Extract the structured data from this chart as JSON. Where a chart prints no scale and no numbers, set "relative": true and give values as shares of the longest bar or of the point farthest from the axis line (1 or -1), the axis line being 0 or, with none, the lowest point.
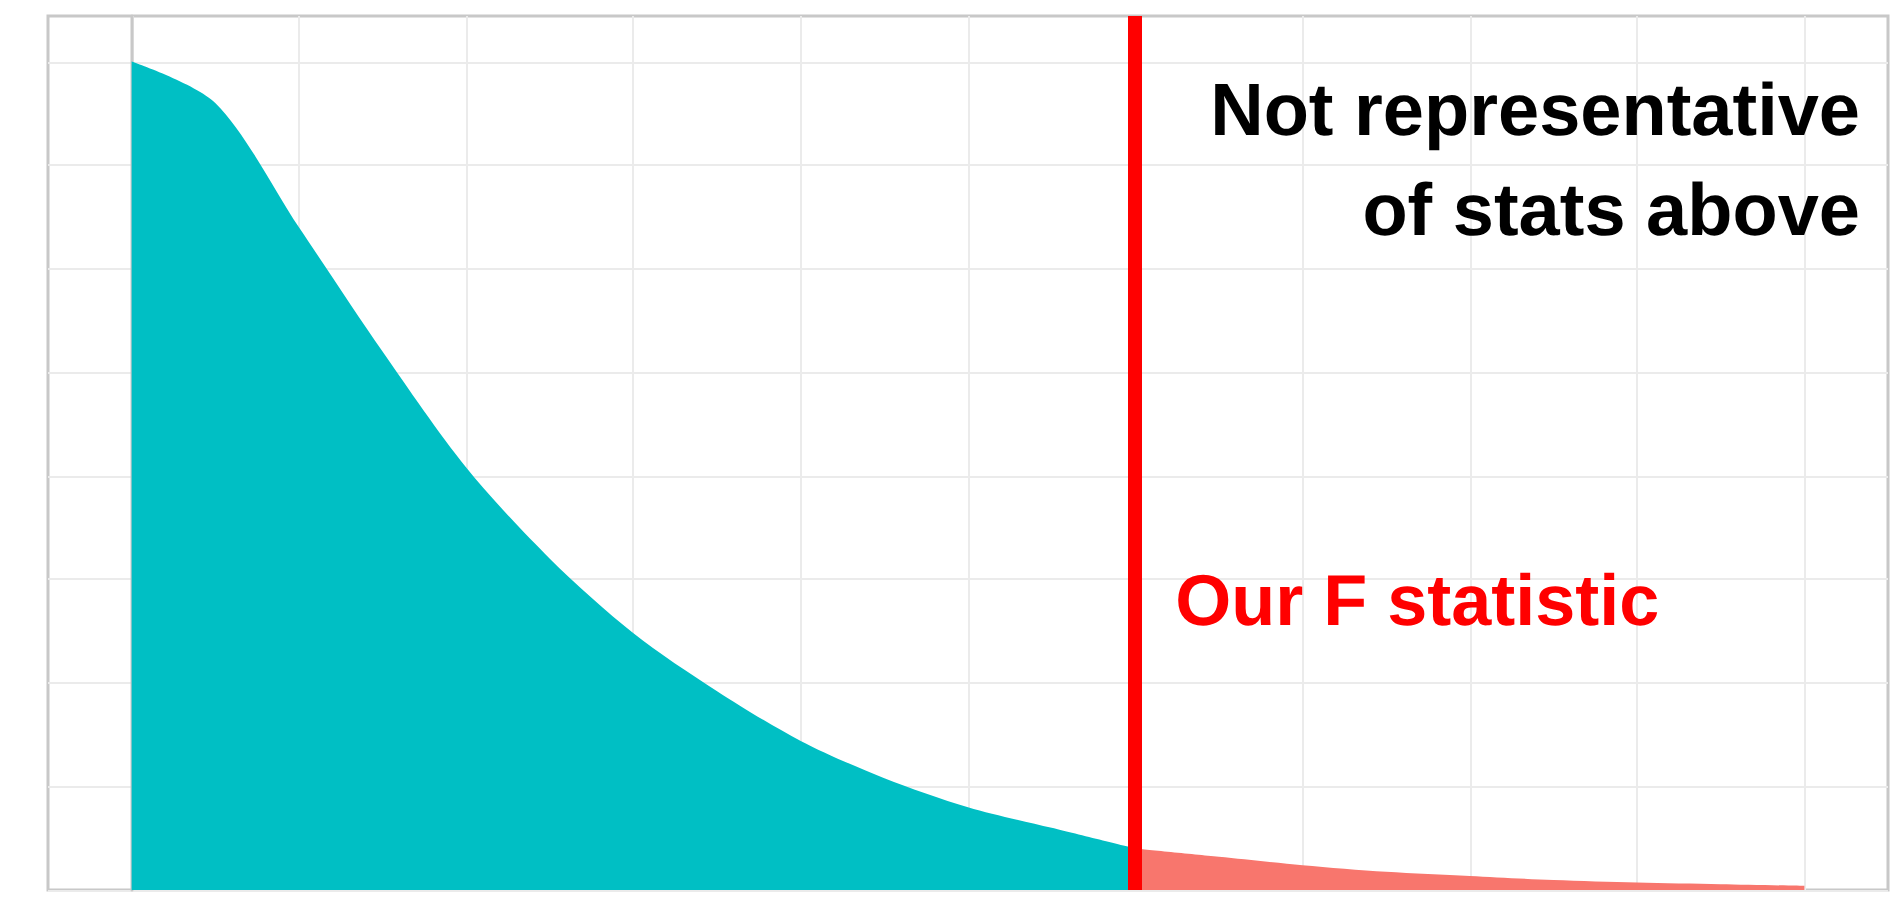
{
  "chart_data": {
    "type": "area",
    "relative": true,
    "grid": true,
    "categories": [
      null,
      null,
      null,
      null,
      null,
      null,
      null,
      null,
      null,
      null,
      null,
      null,
      null,
      null,
      null,
      null,
      null,
      null,
      null,
      null,
      null
    ],
    "series": [
      {
        "color": "#00bfc4",
        "values": [
          1.0,
          0.95,
          0.8,
          0.65,
          0.51,
          0.4,
          0.31,
          0.24,
          0.18,
          0.135,
          0.1,
          0.075,
          0.05,
          null,
          null,
          null,
          null,
          null,
          null,
          null,
          null
        ]
      },
      {
        "color": "#f8766d",
        "values": [
          null,
          null,
          null,
          null,
          null,
          null,
          null,
          null,
          null,
          null,
          null,
          null,
          0.05,
          0.04,
          0.03,
          0.022,
          0.017,
          0.012,
          0.009,
          0.007,
          0.005
        ]
      }
    ],
    "annotations": [
      "Not representative of stats above",
      "Our F statistic"
    ]
  }
}
